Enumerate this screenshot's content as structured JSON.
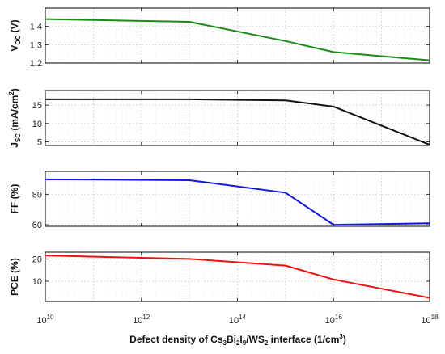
{
  "chart_data": [
    {
      "type": "line",
      "title": "",
      "ylabel": {
        "main": "V",
        "sub": "OC",
        "unit": " (V)"
      },
      "x": [
        10000000000.0,
        10000000000000.0,
        1000000000000000.0,
        1e+16,
        1e+18
      ],
      "series": [
        {
          "values": [
            1.44,
            1.425,
            1.32,
            1.26,
            1.215
          ],
          "color": "#1a8a1a"
        }
      ],
      "ylim": [
        1.2,
        1.5
      ],
      "yticks": [
        1.2,
        1.3,
        1.4
      ],
      "yticklabels": [
        "1.2",
        "1.3",
        "1.4"
      ],
      "xscale": "log",
      "grid": true
    },
    {
      "type": "line",
      "title": "",
      "ylabel": {
        "main": "J",
        "sub": "SC",
        "unit": " (mA/cm",
        "sup": "2",
        "close": ")"
      },
      "x": [
        10000000000.0,
        10000000000000.0,
        1000000000000000.0,
        1e+16,
        1e+18
      ],
      "series": [
        {
          "values": [
            16.6,
            16.6,
            16.3,
            14.6,
            4.2
          ],
          "color": "#111111"
        }
      ],
      "ylim": [
        4,
        19
      ],
      "yticks": [
        5,
        10,
        15
      ],
      "yticklabels": [
        "5",
        "10",
        "15"
      ],
      "xscale": "log",
      "grid": true
    },
    {
      "type": "line",
      "title": "",
      "ylabel": {
        "main": "FF (%)"
      },
      "x": [
        10000000000.0,
        10000000000000.0,
        1000000000000000.0,
        1e+16,
        1e+18
      ],
      "series": [
        {
          "values": [
            89.8,
            89.2,
            81.0,
            60.0,
            61.0
          ],
          "color": "#1515e0"
        }
      ],
      "ylim": [
        59,
        95
      ],
      "yticks": [
        60,
        80
      ],
      "yticklabels": [
        "60",
        "80"
      ],
      "xscale": "log",
      "grid": true
    },
    {
      "type": "line",
      "title": "",
      "ylabel": {
        "main": "PCE (%)"
      },
      "x": [
        10000000000.0,
        10000000000000.0,
        1000000000000000.0,
        1e+16,
        1e+18
      ],
      "series": [
        {
          "values": [
            21.5,
            20.0,
            17.0,
            10.8,
            2.6
          ],
          "color": "#ee1111"
        }
      ],
      "ylim": [
        1,
        23
      ],
      "yticks": [
        10,
        20
      ],
      "yticklabels": [
        "10",
        "20"
      ],
      "xscale": "log",
      "grid": true
    }
  ],
  "x_axis": {
    "range": [
      10000000000.0,
      1e+18
    ],
    "ticks": [
      {
        "value": 10000000000.0,
        "base": "10",
        "exp": "10"
      },
      {
        "value": 1000000000000.0,
        "base": "10",
        "exp": "12"
      },
      {
        "value": 100000000000000.0,
        "base": "10",
        "exp": "14"
      },
      {
        "value": 1e+16,
        "base": "10",
        "exp": "16"
      },
      {
        "value": 1e+18,
        "base": "10",
        "exp": "18"
      }
    ],
    "label": {
      "p1": "Defect density of Cs",
      "s1": "3",
      "p2": "Bi",
      "s2": "2",
      "p3": "I",
      "s3": "9",
      "p4": "/WS",
      "s4": "2",
      "p5": " interface (1/cm",
      "sup": "3",
      "p6": ")"
    }
  }
}
